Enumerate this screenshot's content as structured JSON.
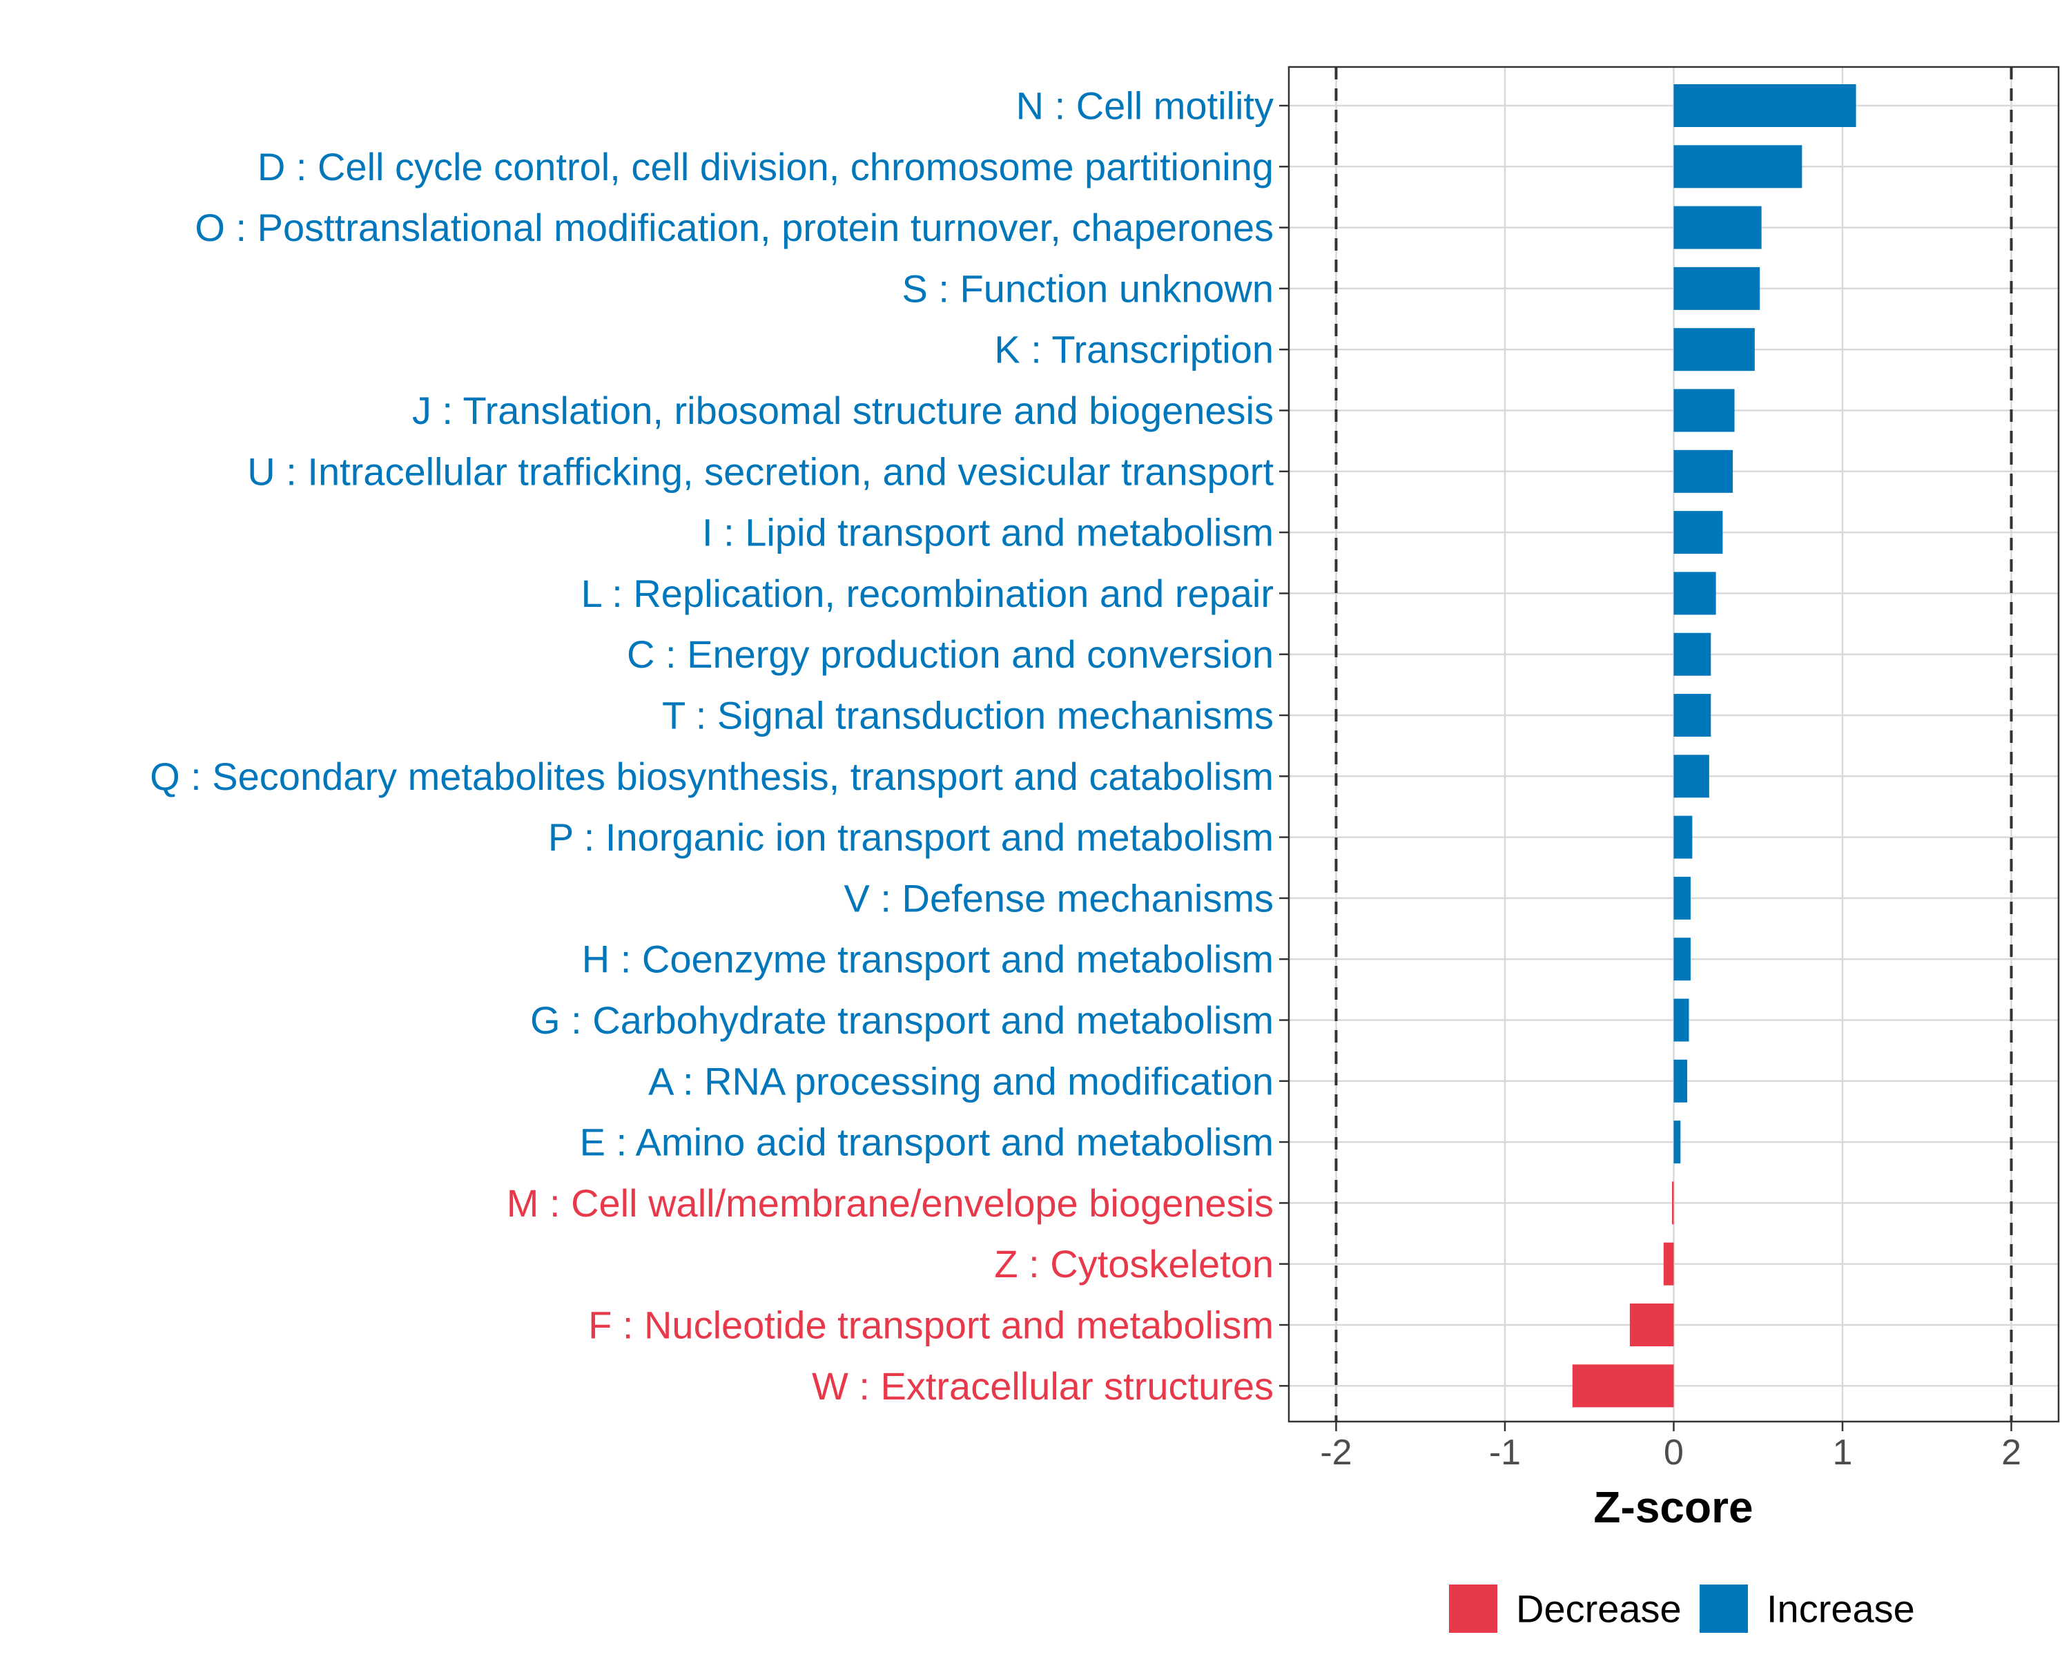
{
  "chart_data": {
    "type": "bar",
    "orientation": "horizontal",
    "xlabel": "Z-score",
    "xlim": [
      -2.28,
      2.28
    ],
    "xticks": [
      -2,
      -1,
      0,
      1,
      2
    ],
    "xtick_labels": [
      "-2",
      "-1",
      "0",
      "1",
      "2"
    ],
    "reference_lines": [
      -2,
      2
    ],
    "grid": true,
    "legend_position": "bottom",
    "categories": [
      "N : Cell motility",
      "D : Cell cycle control, cell division, chromosome partitioning",
      "O : Posttranslational modification, protein turnover, chaperones",
      "S : Function unknown",
      "K : Transcription",
      "J : Translation, ribosomal structure and biogenesis",
      "U : Intracellular trafficking, secretion, and vesicular transport",
      "I : Lipid transport and metabolism",
      "L : Replication, recombination and repair",
      "C : Energy production and conversion",
      "T : Signal transduction mechanisms",
      "Q : Secondary metabolites biosynthesis, transport and catabolism",
      "P : Inorganic ion transport and metabolism",
      "V : Defense mechanisms",
      "H : Coenzyme transport and metabolism",
      "G : Carbohydrate transport and metabolism",
      "A : RNA processing and modification",
      "E : Amino acid transport and metabolism",
      "M : Cell wall/membrane/envelope biogenesis",
      "Z : Cytoskeleton",
      "F : Nucleotide transport and metabolism",
      "W : Extracellular structures"
    ],
    "values": [
      1.08,
      0.76,
      0.52,
      0.51,
      0.48,
      0.36,
      0.35,
      0.29,
      0.25,
      0.22,
      0.22,
      0.21,
      0.11,
      0.1,
      0.1,
      0.09,
      0.08,
      0.04,
      -0.01,
      -0.06,
      -0.26,
      -0.6
    ],
    "series_groups": [
      "Increase",
      "Increase",
      "Increase",
      "Increase",
      "Increase",
      "Increase",
      "Increase",
      "Increase",
      "Increase",
      "Increase",
      "Increase",
      "Increase",
      "Increase",
      "Increase",
      "Increase",
      "Increase",
      "Increase",
      "Increase",
      "Decrease",
      "Decrease",
      "Decrease",
      "Decrease"
    ],
    "legend": [
      {
        "name": "Decrease",
        "color": "#E8394A"
      },
      {
        "name": "Increase",
        "color": "#0077BB"
      }
    ]
  }
}
